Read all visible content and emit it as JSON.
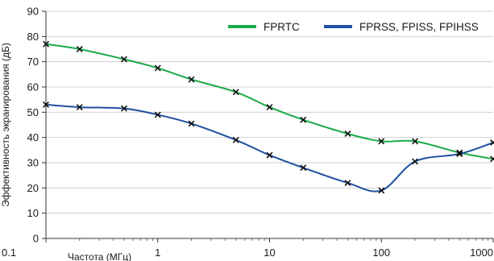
{
  "chart_data": {
    "type": "line",
    "xscale": "log",
    "xlim": [
      0.1,
      1000
    ],
    "ylim": [
      0,
      90
    ],
    "xticks": [
      {
        "value": 0.1,
        "label": "0.1"
      },
      {
        "value": 1,
        "label": "1"
      },
      {
        "value": 10,
        "label": "10"
      },
      {
        "value": 100,
        "label": "100"
      },
      {
        "value": 1000,
        "label": "1000"
      }
    ],
    "yticks": [
      0,
      10,
      20,
      30,
      40,
      50,
      60,
      70,
      80,
      90
    ],
    "xlabel": "Частота (МГц)",
    "ylabel": "Эффективность экранирования (дБ)",
    "grid": "horizontal",
    "legend": "top",
    "series": [
      {
        "name": "FPRTC",
        "color": "#1aaa4a",
        "points": [
          {
            "x": 0.1,
            "y": 77
          },
          {
            "x": 0.2,
            "y": 75
          },
          {
            "x": 0.5,
            "y": 71
          },
          {
            "x": 1,
            "y": 67.5
          },
          {
            "x": 2,
            "y": 63
          },
          {
            "x": 5,
            "y": 58
          },
          {
            "x": 10,
            "y": 52
          },
          {
            "x": 20,
            "y": 47
          },
          {
            "x": 50,
            "y": 41.5
          },
          {
            "x": 100,
            "y": 38.5
          },
          {
            "x": 200,
            "y": 38.5
          },
          {
            "x": 500,
            "y": 34
          },
          {
            "x": 1000,
            "y": 31.5
          }
        ]
      },
      {
        "name": "FPRSS, FPISS, FPIHSS",
        "color": "#1f4fa0",
        "points": [
          {
            "x": 0.1,
            "y": 53
          },
          {
            "x": 0.2,
            "y": 52
          },
          {
            "x": 0.5,
            "y": 51.5
          },
          {
            "x": 1,
            "y": 49
          },
          {
            "x": 2,
            "y": 45.5
          },
          {
            "x": 5,
            "y": 39
          },
          {
            "x": 10,
            "y": 33
          },
          {
            "x": 20,
            "y": 28
          },
          {
            "x": 50,
            "y": 22
          },
          {
            "x": 100,
            "y": 19
          },
          {
            "x": 200,
            "y": 30.5
          },
          {
            "x": 500,
            "y": 33.5
          },
          {
            "x": 1000,
            "y": 38
          }
        ]
      }
    ]
  }
}
